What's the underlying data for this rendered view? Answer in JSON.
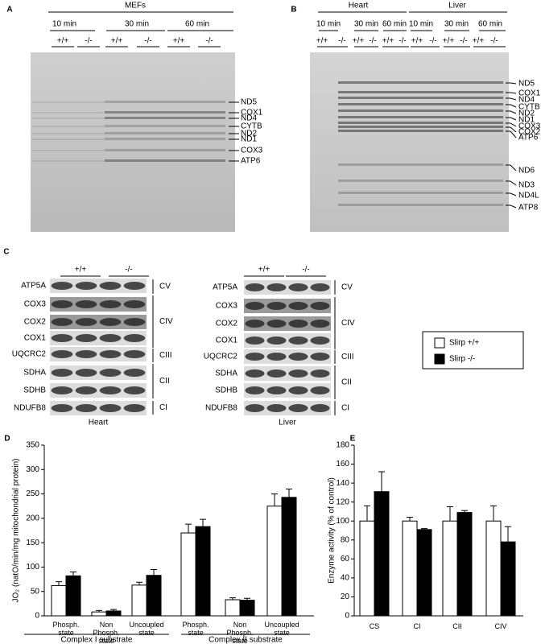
{
  "panel_a": {
    "letter": "A",
    "title": "MEFs",
    "times": [
      "10 min",
      "30 min",
      "60 min"
    ],
    "genotypes": [
      "+/+",
      "-/-",
      "+/+",
      "-/-",
      "+/+",
      "-/-"
    ],
    "bands": [
      "ND5",
      "COX1",
      "ND4",
      "CYTB",
      "ND2",
      "ND1",
      "COX3",
      "ATP6"
    ]
  },
  "panel_b": {
    "letter": "B",
    "tissues": [
      "Heart",
      "Liver"
    ],
    "times": [
      "10 min",
      "30 min",
      "60 min",
      "10 min",
      "30 min",
      "60 min"
    ],
    "genotypes": [
      "+/+",
      "-/-",
      "+/+",
      "-/-",
      "+/+",
      "-/-",
      "+/+",
      "-/-",
      "+/+",
      "-/-",
      "+/+",
      "-/-"
    ],
    "bands": [
      "ND5",
      "COX1",
      "ND4",
      "CYTB",
      "ND2",
      "ND1",
      "COX3",
      "COX2",
      "ATP6",
      "ND6",
      "ND3",
      "ND4L",
      "ATP8"
    ]
  },
  "panel_c": {
    "letter": "C",
    "blots": [
      {
        "tissue": "Heart",
        "genotypes": [
          "+/+",
          "-/-"
        ],
        "proteins": [
          "ATP5A",
          "COX3",
          "COX2",
          "COX1",
          "UQCRC2",
          "SDHA",
          "SDHB",
          "NDUFB8"
        ],
        "complexes": [
          "CV",
          "CIV",
          "CIII",
          "CII",
          "CI"
        ]
      },
      {
        "tissue": "Liver",
        "genotypes": [
          "+/+",
          "-/-"
        ],
        "proteins": [
          "ATP5A",
          "COX3",
          "COX2",
          "COX1",
          "UQCRC2",
          "SDHA",
          "SDHB",
          "NDUFB8"
        ],
        "complexes": [
          "CV",
          "CIV",
          "CIII",
          "CII",
          "CI"
        ]
      }
    ]
  },
  "chart_data": [
    {
      "type": "bar",
      "label": "D",
      "ylabel": "JO₂ (natO/min/mg mitochondrial protein)",
      "categories": [
        "Phosph. state",
        "Non Phosph. state",
        "Uncoupled state",
        "Phosph. state",
        "Non Phosph. state",
        "Uncoupled state"
      ],
      "groups": [
        "Complex I substrate",
        "Complex II substrate"
      ],
      "series": [
        {
          "name": "Slirp +/+",
          "color": "#ffffff",
          "values": [
            62,
            8,
            63,
            170,
            33,
            225
          ],
          "errors": [
            8,
            3,
            6,
            18,
            4,
            25
          ]
        },
        {
          "name": "Slirp -/-",
          "color": "#000000",
          "values": [
            82,
            10,
            83,
            183,
            32,
            243
          ],
          "errors": [
            8,
            3,
            12,
            15,
            4,
            17
          ]
        }
      ],
      "ylim": [
        0,
        350
      ],
      "yticks": [
        0,
        50,
        100,
        150,
        200,
        250,
        300,
        350
      ]
    },
    {
      "type": "bar",
      "label": "E",
      "ylabel": "Enzyme activity (% of control)",
      "categories": [
        "CS",
        "CI",
        "CII",
        "CIV"
      ],
      "series": [
        {
          "color": "#ffffff",
          "values": [
            100,
            100,
            100,
            100
          ],
          "errors": [
            16,
            4,
            15,
            16
          ]
        },
        {
          "color": "#000000",
          "values": [
            131,
            91,
            109,
            78
          ],
          "errors": [
            21,
            1,
            2,
            16
          ]
        }
      ],
      "ylim": [
        0,
        180
      ],
      "yticks": [
        0,
        20,
        40,
        60,
        80,
        100,
        120,
        140,
        160,
        180
      ]
    }
  ]
}
